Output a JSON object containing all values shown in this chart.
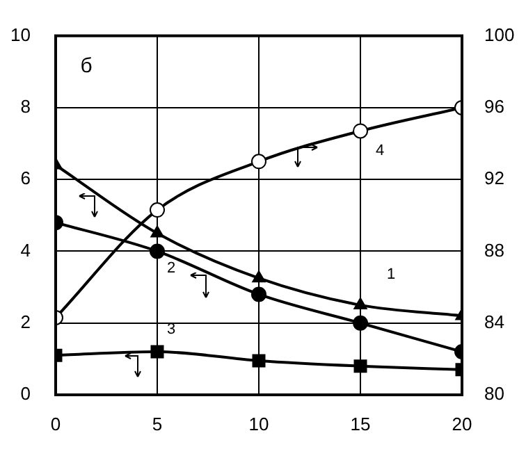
{
  "chart_data": {
    "type": "line",
    "annotations": [
      "б"
    ],
    "x": [
      0,
      5,
      10,
      15,
      20
    ],
    "xlim": [
      0,
      20
    ],
    "xticks": [
      0,
      5,
      10,
      15,
      20
    ],
    "ylim": [
      0,
      10
    ],
    "yticks": [
      0,
      2,
      4,
      6,
      8,
      10
    ],
    "y2lim": [
      80,
      100
    ],
    "y2ticks": [
      80,
      84,
      88,
      92,
      96,
      100
    ],
    "grid": true,
    "legend": false,
    "line_style": "solid",
    "series": [
      {
        "name": "1",
        "color": "#000000",
        "marker": "triangle",
        "values": [
          6.4,
          4.5,
          3.25,
          2.5,
          2.2
        ]
      },
      {
        "name": "2",
        "color": "#000000",
        "marker": "circle",
        "values": [
          4.8,
          4.0,
          2.8,
          2.0,
          1.2
        ]
      },
      {
        "name": "3",
        "color": "#000000",
        "marker": "square",
        "values": [
          1.1,
          1.2,
          0.95,
          0.8,
          0.7
        ]
      },
      {
        "name": "4",
        "color": "#000000",
        "marker": "circle_open",
        "axis": "y2",
        "values": [
          84.3,
          90.3,
          93.0,
          94.7,
          96.0
        ]
      }
    ]
  }
}
